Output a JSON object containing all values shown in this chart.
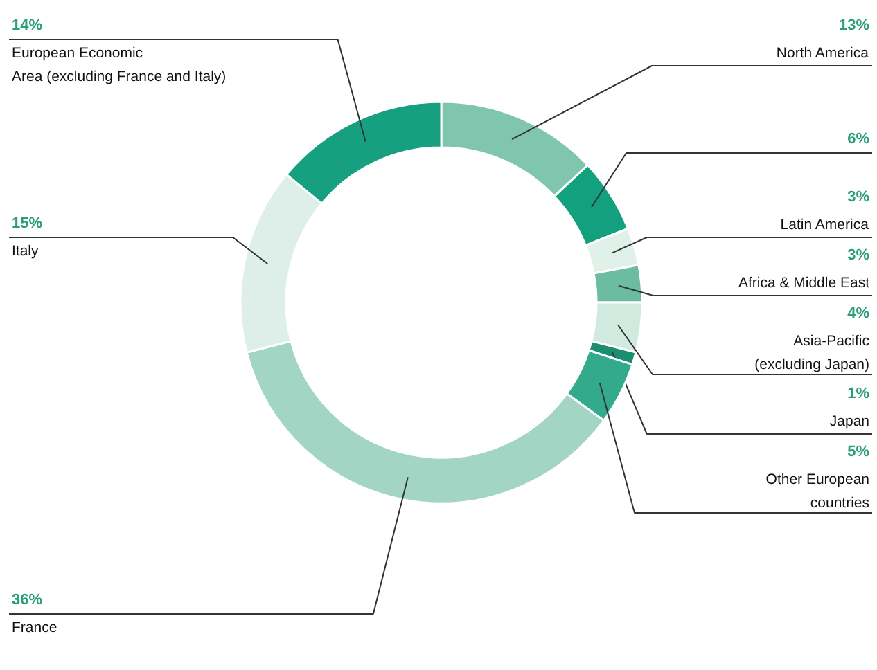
{
  "chart_data": {
    "type": "donut",
    "categories": [
      "North America",
      null,
      "Latin America",
      "Africa & Middle East",
      "Asia-Pacific\n(excluding Japan)",
      "Japan",
      "Other European\ncountries",
      "France",
      "Italy",
      "European Economic\nArea (excluding France and Italy)"
    ],
    "values": [
      13,
      6,
      3,
      3,
      4,
      1,
      5,
      36,
      15,
      14
    ],
    "value_labels": [
      "13%",
      "6%",
      "3%",
      "3%",
      "4%",
      "1%",
      "5%",
      "36%",
      "15%",
      "14%"
    ],
    "colors": [
      "#80c6ae",
      "#12a07f",
      "#e0f1ea",
      "#6cbca1",
      "#d0eae0",
      "#1b8e71",
      "#33aa8b",
      "#a2d5c4",
      "#ddefe8",
      "#16a07f"
    ]
  }
}
